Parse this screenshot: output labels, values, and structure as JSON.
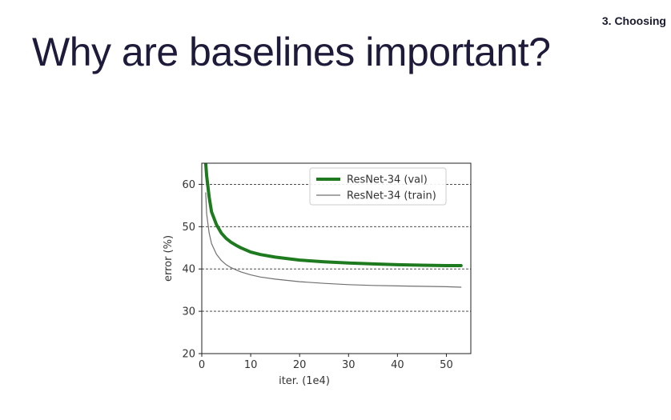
{
  "slide": {
    "section_tag": "3. Choosing",
    "title": "Why are baselines important?"
  },
  "chart_data": {
    "type": "line",
    "title": "",
    "xlabel": "iter. (1e4)",
    "ylabel": "error (%)",
    "xlim": [
      0,
      55
    ],
    "ylim": [
      20,
      65
    ],
    "xticks": [
      0,
      10,
      20,
      30,
      40,
      50
    ],
    "yticks": [
      20,
      30,
      40,
      50,
      60
    ],
    "grid": "horizontal dashed at y ticks",
    "legend_position": "top-right",
    "series": [
      {
        "name": "ResNet-34 (val)",
        "color": "#1e7a1e",
        "style": "thick",
        "x": [
          0.8,
          1,
          1.5,
          2,
          3,
          4,
          5,
          6,
          7,
          8,
          10,
          12,
          15,
          20,
          25,
          30,
          35,
          40,
          45,
          50,
          53
        ],
        "y": [
          65,
          62,
          57,
          53.5,
          50.5,
          48.5,
          47.2,
          46.3,
          45.6,
          45.0,
          44.0,
          43.4,
          42.8,
          42.1,
          41.7,
          41.4,
          41.2,
          41.0,
          40.9,
          40.8,
          40.8
        ]
      },
      {
        "name": "ResNet-34 (train)",
        "color": "#707070",
        "style": "thin",
        "x": [
          0.8,
          1,
          1.5,
          2,
          3,
          4,
          5,
          6,
          7,
          8,
          10,
          12,
          15,
          20,
          25,
          30,
          35,
          40,
          45,
          50,
          53
        ],
        "y": [
          58,
          53,
          48.5,
          46,
          43.5,
          42,
          41,
          40.3,
          39.8,
          39.3,
          38.6,
          38.1,
          37.6,
          37.0,
          36.6,
          36.3,
          36.1,
          36.0,
          35.9,
          35.8,
          35.7
        ]
      }
    ]
  }
}
